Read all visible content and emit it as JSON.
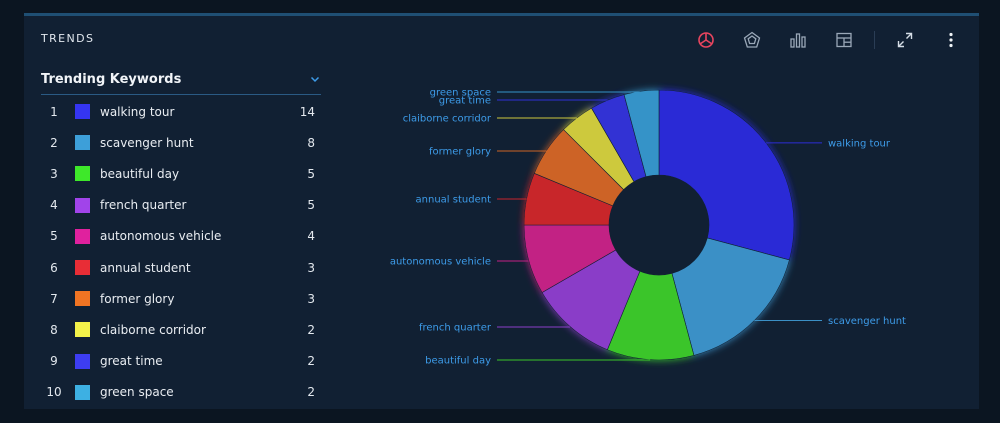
{
  "panel": {
    "title": "TRENDS"
  },
  "toolbar": {
    "icons": [
      "donut-chart-icon",
      "radar-chart-icon",
      "bar-chart-icon",
      "table-grid-icon",
      "expand-icon",
      "more-vertical-icon"
    ],
    "active_color": "#e8455f"
  },
  "keywords": {
    "title": "Trending Keywords",
    "items": [
      {
        "rank": "1",
        "label": "walking tour",
        "count": "14",
        "color": "#3535f2"
      },
      {
        "rank": "2",
        "label": "scavenger hunt",
        "count": "8",
        "color": "#3d9fd9"
      },
      {
        "rank": "3",
        "label": "beautiful day",
        "count": "5",
        "color": "#3ee82a"
      },
      {
        "rank": "4",
        "label": "french quarter",
        "count": "5",
        "color": "#a144ea"
      },
      {
        "rank": "5",
        "label": "autonomous vehicle",
        "count": "4",
        "color": "#e0219e"
      },
      {
        "rank": "6",
        "label": "annual student",
        "count": "3",
        "color": "#e82d36"
      },
      {
        "rank": "7",
        "label": "former glory",
        "count": "3",
        "color": "#f07423"
      },
      {
        "rank": "8",
        "label": "claiborne corridor",
        "count": "2",
        "color": "#f3f24a"
      },
      {
        "rank": "9",
        "label": "great time",
        "count": "2",
        "color": "#3d3df2"
      },
      {
        "rank": "10",
        "label": "green space",
        "count": "2",
        "color": "#3db0e3"
      }
    ]
  },
  "chart_data": {
    "type": "pie",
    "variant": "donut",
    "categories": [
      "walking tour",
      "scavenger hunt",
      "beautiful day",
      "french quarter",
      "autonomous vehicle",
      "annual student",
      "former glory",
      "claiborne corridor",
      "great time",
      "green space"
    ],
    "values": [
      14,
      8,
      5,
      5,
      4,
      3,
      3,
      2,
      2,
      2
    ],
    "colors": [
      "#2c2cd6",
      "#3b90c6",
      "#3ac52a",
      "#8a3ec8",
      "#c22084",
      "#c8252c",
      "#cd6426",
      "#cdc93e",
      "#3030d4",
      "#3593c8"
    ],
    "label_color": "#3d9be8",
    "title": "",
    "xlabel": "",
    "ylabel": ""
  }
}
